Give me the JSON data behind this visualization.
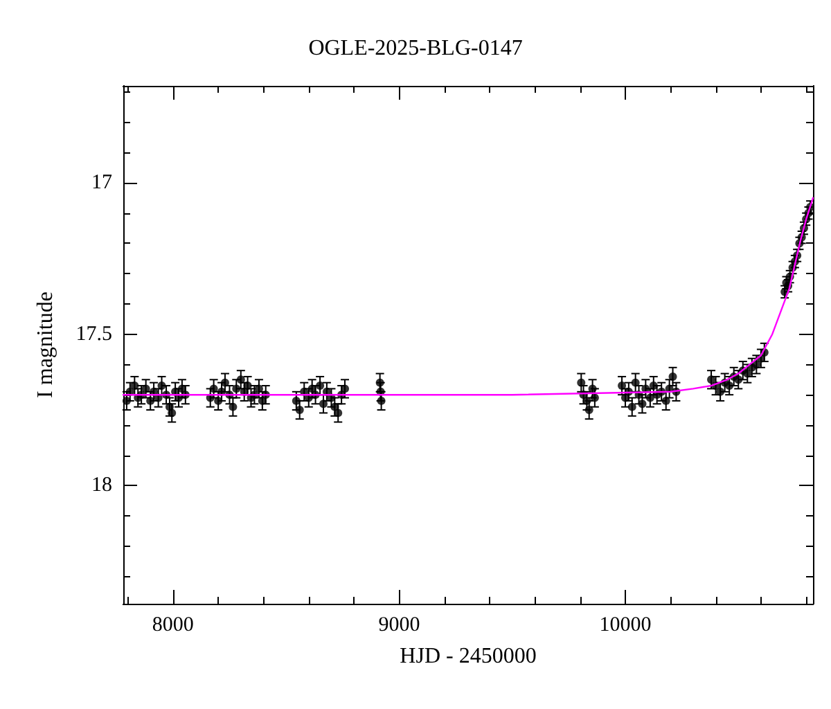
{
  "chart_data": {
    "type": "scatter",
    "title": "OGLE-2025-BLG-0147",
    "xlabel": "HJD - 2450000",
    "ylabel": "I magnitude",
    "xlim": [
      7780,
      10830
    ],
    "ylim": [
      18.39,
      16.68
    ],
    "xticks": [
      {
        "value": 7800,
        "label": null
      },
      8000,
      {
        "value": 8200,
        "label": null
      },
      {
        "value": 8400,
        "label": null
      },
      {
        "value": 8600,
        "label": null
      },
      {
        "value": 8800,
        "label": null
      },
      9000,
      {
        "value": 9200,
        "label": null
      },
      {
        "value": 9400,
        "label": null
      },
      {
        "value": 9600,
        "label": null
      },
      {
        "value": 9800,
        "label": null
      },
      10000,
      {
        "value": 10200,
        "label": null
      },
      {
        "value": 10400,
        "label": null
      },
      {
        "value": 10600,
        "label": null
      },
      {
        "value": 10800,
        "label": null
      }
    ],
    "yticks": [
      {
        "value": 16.7,
        "label": null
      },
      {
        "value": 16.8,
        "label": null
      },
      {
        "value": 16.9,
        "label": null
      },
      17,
      {
        "value": 17.1,
        "label": null
      },
      {
        "value": 17.2,
        "label": null
      },
      {
        "value": 17.3,
        "label": null
      },
      {
        "value": 17.4,
        "label": null
      },
      17.5,
      {
        "value": 17.6,
        "label": null
      },
      {
        "value": 17.7,
        "label": null
      },
      {
        "value": 17.8,
        "label": null
      },
      {
        "value": 17.9,
        "label": null
      },
      18,
      {
        "value": 18.1,
        "label": null
      },
      {
        "value": 18.2,
        "label": null
      },
      {
        "value": 18.3,
        "label": null
      }
    ],
    "grid": false,
    "series": [
      {
        "color": "#000000",
        "marker": "circle",
        "x": [
          7795,
          7810,
          7830,
          7845,
          7860,
          7880,
          7900,
          7915,
          7935,
          7950,
          7970,
          7985,
          7995,
          8010,
          8025,
          8040,
          8055,
          8165,
          8180,
          8200,
          8215,
          8230,
          8250,
          8265,
          8280,
          8300,
          8315,
          8330,
          8345,
          8360,
          8380,
          8395,
          8410,
          8545,
          8560,
          8580,
          8600,
          8615,
          8630,
          8650,
          8665,
          8680,
          8700,
          8715,
          8730,
          8745,
          8760,
          8915,
          8918,
          8921,
          9805,
          9815,
          9830,
          9840,
          9855,
          9865,
          9985,
          10000,
          10015,
          10030,
          10045,
          10060,
          10075,
          10090,
          10110,
          10125,
          10140,
          10160,
          10180,
          10195,
          10210,
          10225,
          10380,
          10400,
          10420,
          10440,
          10460,
          10480,
          10500,
          10520,
          10540,
          10560,
          10580,
          10600,
          10615,
          10705,
          10712,
          10720,
          10728,
          10740,
          10750,
          10760,
          10770,
          10780,
          10790,
          10800,
          10810,
          10818
        ],
        "values": [
          17.72,
          17.69,
          17.67,
          17.71,
          17.7,
          17.68,
          17.72,
          17.69,
          17.71,
          17.67,
          17.7,
          17.74,
          17.76,
          17.69,
          17.71,
          17.68,
          17.7,
          17.71,
          17.68,
          17.72,
          17.69,
          17.66,
          17.7,
          17.74,
          17.68,
          17.65,
          17.69,
          17.67,
          17.71,
          17.7,
          17.68,
          17.72,
          17.7,
          17.72,
          17.75,
          17.69,
          17.71,
          17.68,
          17.7,
          17.67,
          17.73,
          17.69,
          17.71,
          17.74,
          17.76,
          17.7,
          17.68,
          17.66,
          17.69,
          17.72,
          17.66,
          17.7,
          17.72,
          17.75,
          17.68,
          17.71,
          17.67,
          17.71,
          17.69,
          17.74,
          17.66,
          17.7,
          17.73,
          17.68,
          17.71,
          17.67,
          17.7,
          17.69,
          17.72,
          17.68,
          17.64,
          17.69,
          17.65,
          17.67,
          17.69,
          17.66,
          17.67,
          17.64,
          17.65,
          17.62,
          17.63,
          17.61,
          17.6,
          17.58,
          17.56,
          17.36,
          17.33,
          17.34,
          17.31,
          17.28,
          17.26,
          17.24,
          17.2,
          17.18,
          17.15,
          17.12,
          17.1,
          17.08
        ],
        "errors": [
          0.03,
          0.03,
          0.03,
          0.03,
          0.03,
          0.03,
          0.03,
          0.03,
          0.03,
          0.03,
          0.03,
          0.03,
          0.03,
          0.03,
          0.03,
          0.03,
          0.03,
          0.03,
          0.03,
          0.03,
          0.03,
          0.03,
          0.03,
          0.03,
          0.03,
          0.03,
          0.03,
          0.03,
          0.03,
          0.03,
          0.03,
          0.03,
          0.03,
          0.03,
          0.03,
          0.03,
          0.03,
          0.03,
          0.03,
          0.03,
          0.03,
          0.03,
          0.03,
          0.03,
          0.03,
          0.03,
          0.03,
          0.03,
          0.03,
          0.03,
          0.03,
          0.03,
          0.03,
          0.03,
          0.03,
          0.03,
          0.03,
          0.03,
          0.03,
          0.03,
          0.03,
          0.03,
          0.03,
          0.03,
          0.03,
          0.03,
          0.03,
          0.03,
          0.03,
          0.03,
          0.03,
          0.03,
          0.03,
          0.03,
          0.03,
          0.03,
          0.03,
          0.03,
          0.03,
          0.03,
          0.03,
          0.03,
          0.03,
          0.03,
          0.03,
          0.02,
          0.02,
          0.02,
          0.02,
          0.02,
          0.02,
          0.02,
          0.02,
          0.02,
          0.02,
          0.02,
          0.02,
          0.02
        ]
      },
      {
        "type": "line",
        "color": "#ff00ff",
        "marker": "none",
        "line_style": "solid",
        "x": [
          7780,
          8500,
          9500,
          10200,
          10300,
          10380,
          10450,
          10500,
          10550,
          10600,
          10650,
          10700,
          10725,
          10750,
          10775,
          10800,
          10830
        ],
        "values": [
          17.7,
          17.7,
          17.7,
          17.69,
          17.68,
          17.67,
          17.65,
          17.63,
          17.6,
          17.57,
          17.5,
          17.4,
          17.35,
          17.27,
          17.19,
          17.12,
          17.05
        ]
      }
    ]
  }
}
